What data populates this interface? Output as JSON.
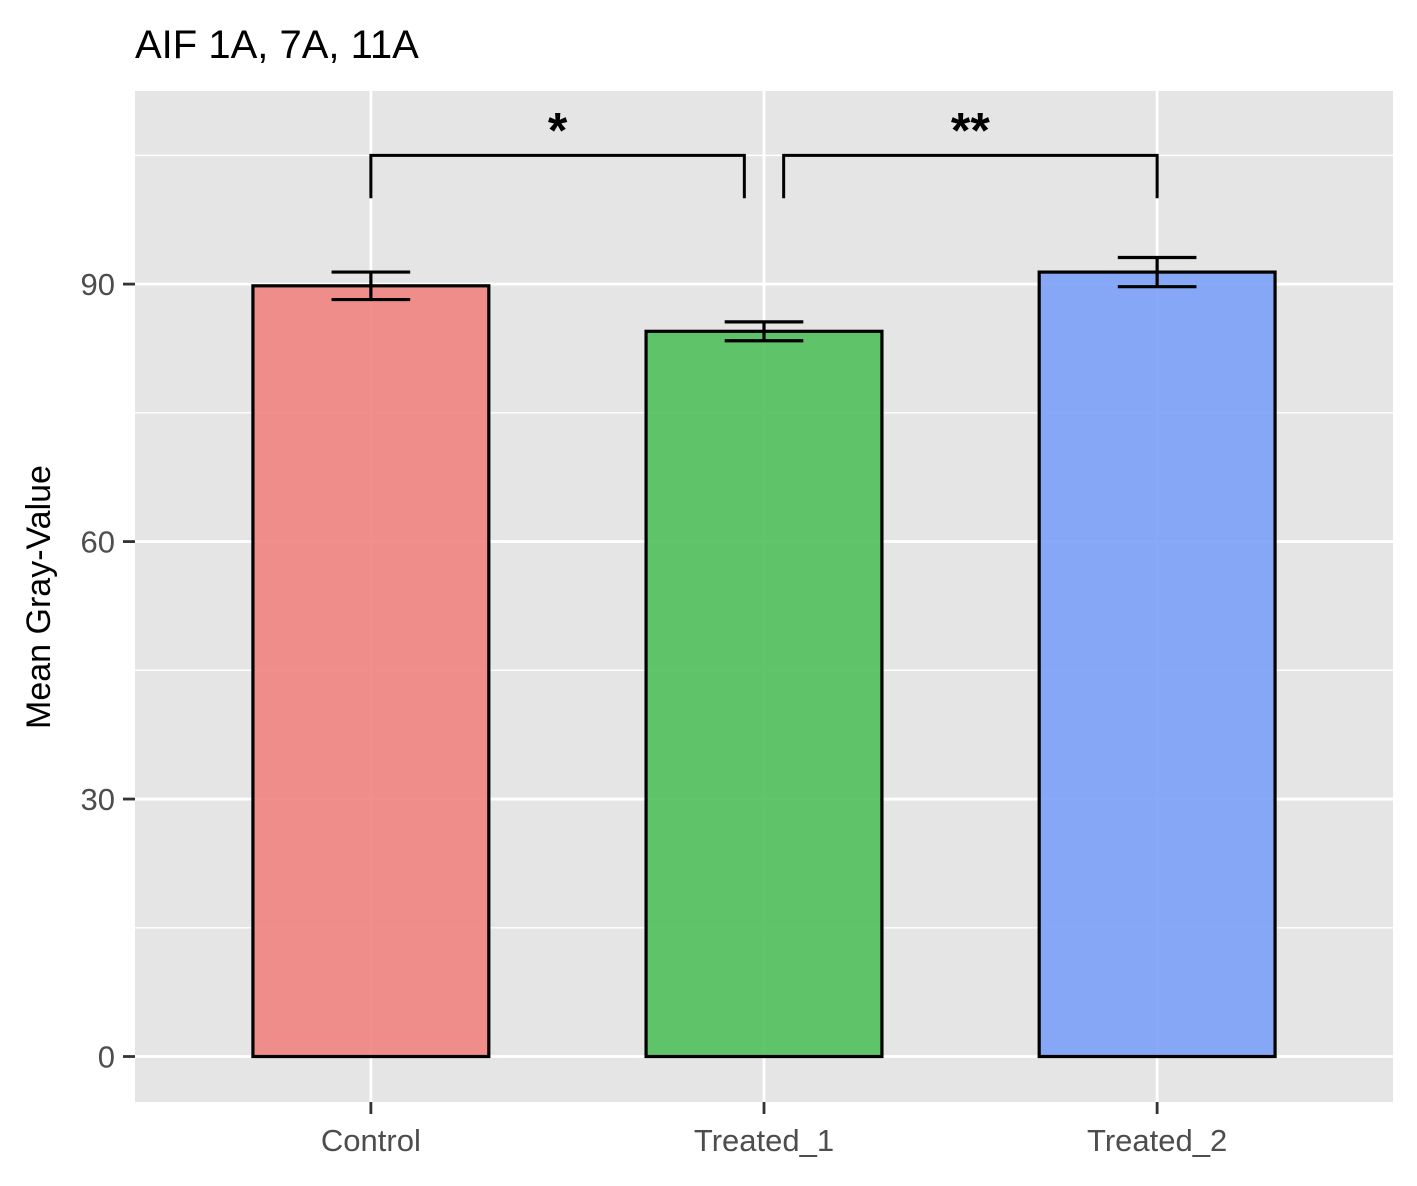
{
  "chart_data": {
    "type": "bar",
    "title": "AIF 1A, 7A, 11A",
    "xlabel": "",
    "ylabel": "Mean Gray-Value",
    "categories": [
      "Control",
      "Treated_1",
      "Treated_2"
    ],
    "values": [
      89.8,
      84.5,
      91.4
    ],
    "error": [
      1.6,
      1.1,
      1.7
    ],
    "colors": [
      "#F08783",
      "#55C160",
      "#7FA3F6"
    ],
    "ylim": [
      -5.3,
      112.5
    ],
    "yticks": [
      0,
      30,
      60,
      90
    ],
    "ytick_labels": [
      "0",
      "30",
      "60",
      "90"
    ],
    "grid": true,
    "legend": "none",
    "panel_background": "#E5E5E5",
    "significance": [
      {
        "from": "Control",
        "to": "Treated_1",
        "label": "*",
        "y": 105,
        "drop_to": 100
      },
      {
        "from": "Treated_1",
        "to": "Treated_2",
        "label": "**",
        "y": 105,
        "drop_to": 100
      }
    ]
  }
}
